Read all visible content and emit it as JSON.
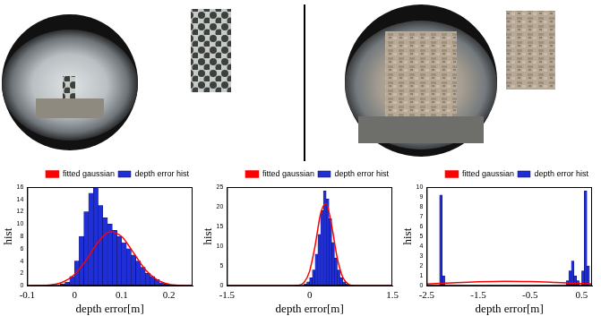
{
  "chart_data": [
    {
      "type": "histogram",
      "x_label": "depth error[m]",
      "y_label": "hist",
      "legend": "upper right",
      "grid": false,
      "xlim": [
        -0.1,
        0.25
      ],
      "xticks": [
        -0.1,
        0,
        0.1,
        0.2
      ],
      "ylim": [
        0,
        16
      ],
      "yticks": [
        0,
        2,
        4,
        6,
        8,
        10,
        12,
        14,
        16
      ],
      "series": [
        {
          "name": "depth error hist",
          "type": "bar",
          "color": "#1f2fd8",
          "bins": [
            -0.03,
            -0.02,
            -0.01,
            0,
            0.01,
            0.02,
            0.03,
            0.04,
            0.05,
            0.06,
            0.07,
            0.08,
            0.09,
            0.1,
            0.11,
            0.12,
            0.13,
            0.14,
            0.15,
            0.16,
            0.17,
            0.18,
            0.19,
            0.2
          ],
          "values": [
            0.3,
            0.6,
            1.5,
            4,
            8,
            12,
            15,
            16,
            13,
            11,
            10,
            9,
            8,
            7,
            6,
            5,
            4,
            3,
            2,
            1.5,
            1,
            0.5,
            0.3
          ]
        },
        {
          "name": "fitted gaussian",
          "type": "line",
          "color": "#ff0000",
          "x": [
            -0.1,
            -0.075,
            -0.05,
            -0.025,
            0,
            0.025,
            0.05,
            0.075,
            0.1,
            0.125,
            0.15,
            0.175,
            0.2,
            0.225,
            0.25
          ],
          "values": [
            0,
            0.02,
            0.14,
            0.58,
            1.81,
            4.17,
            7.06,
            8.75,
            7.97,
            5.34,
            2.62,
            0.95,
            0.25,
            0.05,
            0.01
          ]
        }
      ]
    },
    {
      "type": "histogram",
      "x_label": "depth error[m]",
      "y_label": "hist",
      "legend": "upper right",
      "grid": false,
      "xlim": [
        -1.5,
        1.5
      ],
      "xticks": [
        -1.5,
        0,
        1.5
      ],
      "ylim": [
        0,
        25
      ],
      "yticks": [
        0,
        5,
        10,
        15,
        20,
        25
      ],
      "series": [
        {
          "name": "depth error hist",
          "type": "bar",
          "color": "#1f2fd8",
          "bins": [
            -0.1,
            -0.05,
            0,
            0.05,
            0.1,
            0.15,
            0.2,
            0.25,
            0.3,
            0.35,
            0.4,
            0.45,
            0.5,
            0.55,
            0.6,
            0.65,
            0.7
          ],
          "values": [
            0.5,
            1,
            2,
            4,
            8,
            13,
            19,
            24,
            22,
            17,
            11,
            7,
            4,
            2,
            1,
            0.5
          ]
        },
        {
          "name": "fitted gaussian",
          "type": "line",
          "color": "#ff0000",
          "x": [
            -1.5,
            -0.5,
            -0.2,
            -0.1,
            0,
            0.1,
            0.2,
            0.3,
            0.4,
            0.5,
            0.6,
            0.7,
            0.8,
            1,
            1.5
          ],
          "values": [
            0,
            0,
            0.13,
            0.86,
            3.7,
            10.2,
            18.3,
            20.8,
            15.2,
            7.1,
            2.2,
            0.42,
            0.05,
            0,
            0
          ]
        }
      ]
    },
    {
      "type": "histogram",
      "x_label": "depth error[m]",
      "y_label": "hist",
      "legend": "upper right",
      "grid": false,
      "xlim": [
        -2.5,
        0.7
      ],
      "xticks": [
        -2.5,
        -1.5,
        -0.5,
        0.5
      ],
      "ylim": [
        0,
        10
      ],
      "yticks": [
        0,
        1,
        2,
        3,
        4,
        5,
        6,
        7,
        8,
        9,
        10
      ],
      "series": [
        {
          "name": "depth error hist",
          "type": "bar",
          "color": "#1f2fd8",
          "bins": [
            -2.5,
            -2.45,
            -2.4,
            -2.35,
            -2.3,
            -2.25,
            -2.2,
            -2.15,
            -2.1,
            -2.05,
            -2,
            -1.95,
            -1.9,
            -1.85,
            -1.8,
            -1.75,
            -1.7,
            -1.65,
            -1.6,
            -1.55,
            -1.5,
            -1.45,
            -1.4,
            -1.35,
            -1.3,
            -1.25,
            -1.2,
            -1.15,
            -1.1,
            -1.05,
            -1,
            -0.95,
            -0.9,
            -0.85,
            -0.8,
            -0.75,
            -0.7,
            -0.65,
            -0.6,
            -0.55,
            -0.5,
            -0.45,
            -0.4,
            -0.35,
            -0.3,
            -0.25,
            -0.2,
            -0.15,
            -0.1,
            -0.05,
            0,
            0.05,
            0.1,
            0.15,
            0.2,
            0.25,
            0.3,
            0.35,
            0.4,
            0.45,
            0.5,
            0.55,
            0.6,
            0.65,
            0.7
          ],
          "values": [
            0,
            0,
            0,
            0,
            0,
            9.2,
            1,
            0,
            0,
            0,
            0,
            0,
            0,
            0,
            0,
            0,
            0,
            0,
            0,
            0,
            0,
            0,
            0,
            0,
            0,
            0,
            0,
            0,
            0,
            0,
            0,
            0,
            0,
            0,
            0,
            0,
            0,
            0,
            0,
            0,
            0,
            0,
            0,
            0,
            0,
            0,
            0,
            0,
            0,
            0,
            0,
            0,
            0,
            0,
            0.5,
            1.5,
            2.5,
            1,
            0.5,
            0,
            1.5,
            9.6,
            2,
            0
          ]
        },
        {
          "name": "fitted gaussian",
          "type": "line",
          "color": "#ff0000",
          "x": [
            -2.5,
            -2,
            -1.5,
            -1,
            -0.5,
            0,
            0.5,
            0.7
          ],
          "values": [
            0.18,
            0.3,
            0.4,
            0.45,
            0.43,
            0.34,
            0.23,
            0.18
          ]
        }
      ]
    }
  ]
}
